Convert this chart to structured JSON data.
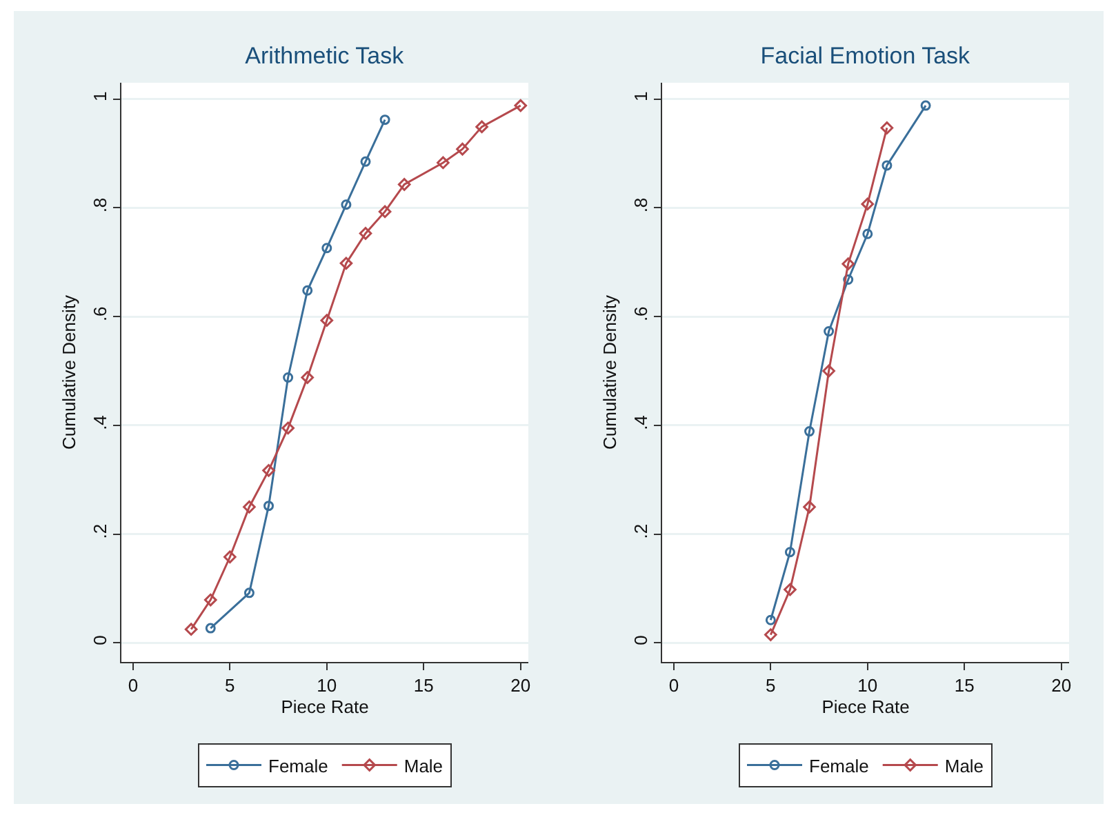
{
  "chart_data": [
    {
      "type": "line",
      "title": "Arithmetic Task",
      "xlabel": "Piece Rate",
      "ylabel": "Cumulative Density",
      "xlim": [
        -0.6,
        20.4
      ],
      "xticks": [
        0,
        5,
        10,
        15,
        20
      ],
      "ylim": [
        -0.035,
        1.03
      ],
      "yticks": [
        {
          "value": 0,
          "label": "0"
        },
        {
          "value": 0.2,
          "label": ".2"
        },
        {
          "value": 0.4,
          "label": ".4"
        },
        {
          "value": 0.6,
          "label": ".6"
        },
        {
          "value": 0.8,
          "label": ".8"
        },
        {
          "value": 1,
          "label": "1"
        }
      ],
      "grid": "y",
      "legend": "bottom",
      "line_style": "solid",
      "series": [
        {
          "name": "Female",
          "color": "#3a6f9a",
          "marker": "circle",
          "x": [
            4,
            6,
            7,
            8,
            9,
            10,
            11,
            12,
            13
          ],
          "values": [
            0.027,
            0.092,
            0.252,
            0.488,
            0.648,
            0.726,
            0.806,
            0.885,
            0.962
          ]
        },
        {
          "name": "Male",
          "color": "#b5494d",
          "marker": "diamond",
          "x": [
            3,
            4,
            5,
            6,
            7,
            8,
            9,
            10,
            11,
            12,
            13,
            14,
            16,
            17,
            18,
            20
          ],
          "values": [
            0.025,
            0.079,
            0.158,
            0.25,
            0.317,
            0.395,
            0.488,
            0.593,
            0.698,
            0.753,
            0.793,
            0.843,
            0.883,
            0.908,
            0.949,
            0.988
          ]
        }
      ]
    },
    {
      "type": "line",
      "title": "Facial Emotion Task",
      "xlabel": "Piece Rate",
      "ylabel": "Cumulative Density",
      "xlim": [
        -0.6,
        20.4
      ],
      "xticks": [
        0,
        5,
        10,
        15,
        20
      ],
      "ylim": [
        -0.035,
        1.03
      ],
      "yticks": [
        {
          "value": 0,
          "label": "0"
        },
        {
          "value": 0.2,
          "label": ".2"
        },
        {
          "value": 0.4,
          "label": ".4"
        },
        {
          "value": 0.6,
          "label": ".6"
        },
        {
          "value": 0.8,
          "label": ".8"
        },
        {
          "value": 1,
          "label": "1"
        }
      ],
      "grid": "y",
      "legend": "bottom",
      "line_style": "solid",
      "series": [
        {
          "name": "Female",
          "color": "#3a6f9a",
          "marker": "circle",
          "x": [
            5,
            6,
            7,
            8,
            9,
            10,
            11,
            13
          ],
          "values": [
            0.042,
            0.167,
            0.389,
            0.573,
            0.668,
            0.752,
            0.878,
            0.988
          ]
        },
        {
          "name": "Male",
          "color": "#b5494d",
          "marker": "diamond",
          "x": [
            5,
            6,
            7,
            8,
            9,
            10,
            11
          ],
          "values": [
            0.015,
            0.098,
            0.25,
            0.5,
            0.697,
            0.807,
            0.947
          ]
        }
      ]
    }
  ]
}
